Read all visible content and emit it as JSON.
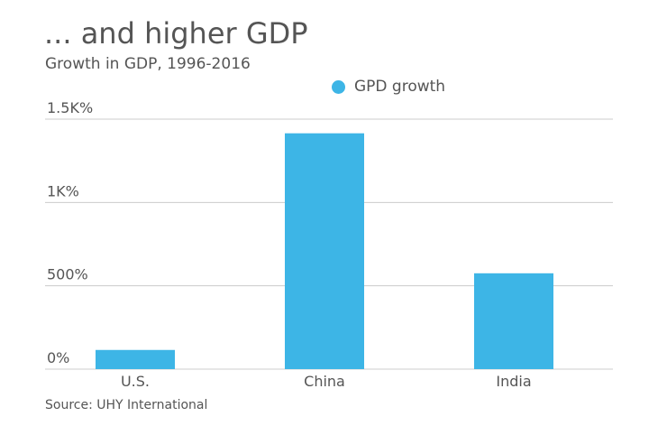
{
  "header": {
    "title": "... and higher GDP",
    "subtitle": "Growth in GDP, 1996-2016"
  },
  "legend": {
    "label": "GPD growth"
  },
  "source": "Source: UHY International",
  "colors": {
    "bar": "#3db5e6",
    "grid": "#cccccc",
    "text": "#555555"
  },
  "chart_data": {
    "type": "bar",
    "title": "... and higher GDP",
    "subtitle": "Growth in GDP, 1996-2016",
    "categories": [
      "U.S.",
      "China",
      "India"
    ],
    "series": [
      {
        "name": "GPD growth",
        "values": [
          115,
          1415,
          575
        ]
      }
    ],
    "ylim": [
      0,
      1500
    ],
    "yticks": [
      0,
      500,
      1000,
      1500
    ],
    "ytick_labels": [
      "0%",
      "500%",
      "1K%",
      "1.5K%"
    ],
    "grid": true,
    "legend_position": "top-center"
  }
}
